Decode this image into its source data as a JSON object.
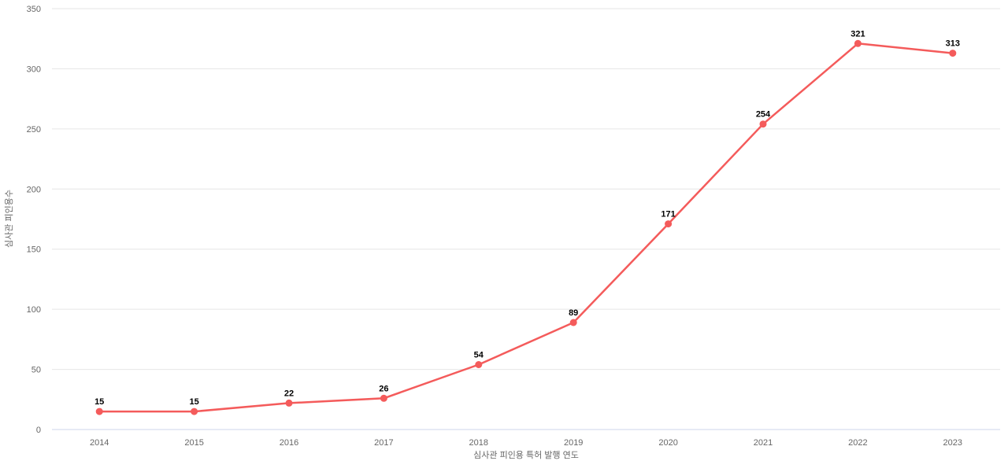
{
  "chart_data": {
    "type": "line",
    "categories": [
      "2014",
      "2015",
      "2016",
      "2017",
      "2018",
      "2019",
      "2020",
      "2021",
      "2022",
      "2023"
    ],
    "series": [
      {
        "name": "심사관 피인용수",
        "values": [
          15,
          15,
          22,
          26,
          54,
          89,
          171,
          254,
          321,
          313
        ]
      }
    ],
    "title": "",
    "xlabel": "심사관 피인용 특허 발행 연도",
    "ylabel": "심사관 피인용수",
    "ylim": [
      0,
      350
    ],
    "yticks": [
      0,
      50,
      100,
      150,
      200,
      250,
      300,
      350
    ],
    "grid": true,
    "legend_position": "none",
    "data_labels_shown": true,
    "colors": {
      "line": "#f45b5b",
      "marker": "#f45b5b",
      "grid_line": "#e6e6e6",
      "axis_line": "#ccd6eb",
      "tick_label": "#666666",
      "axis_title": "#666666",
      "data_label": "#000000",
      "background": "#ffffff"
    }
  }
}
